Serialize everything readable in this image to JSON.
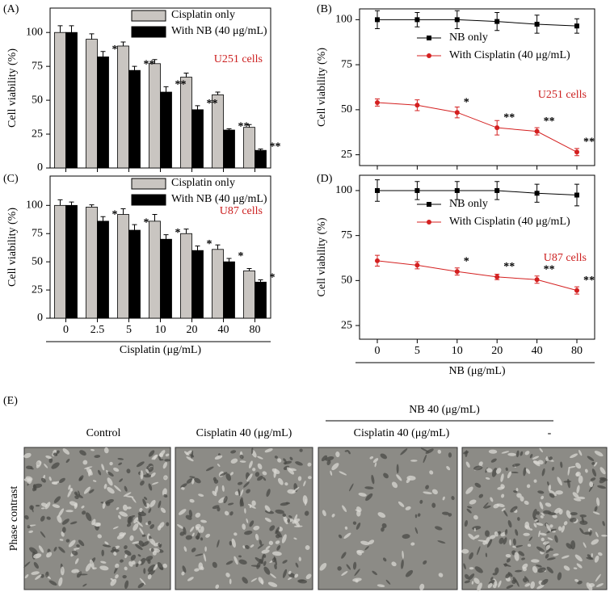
{
  "chart_data": [
    {
      "type": "bar",
      "panel": "(A)",
      "y_label": "Cell viability (%)",
      "annotation": "U251 cells",
      "annotation_color": "#cc1f1f",
      "categories": [
        null,
        null,
        null,
        null,
        null,
        null,
        null
      ],
      "series": [
        {
          "name": "Cisplatin only",
          "color": "#c9c5c1",
          "values": [
            100,
            95,
            90,
            77,
            67,
            54,
            30
          ],
          "errors": [
            5,
            4,
            3,
            3,
            3,
            2,
            2
          ]
        },
        {
          "name": "With NB (40 μg/mL)",
          "color": "#000000",
          "values": [
            100,
            82,
            72,
            56,
            43,
            28,
            13
          ],
          "errors": [
            5,
            4,
            3,
            4,
            3,
            1,
            1
          ],
          "significance": [
            null,
            "*",
            "**",
            "**",
            "**",
            "**",
            "**"
          ]
        }
      ],
      "ylim": [
        0,
        118
      ],
      "yticks": [
        0,
        25,
        50,
        75,
        100
      ],
      "legend": "upper right"
    },
    {
      "type": "line",
      "panel": "(B)",
      "y_label": "Cell viability (%)",
      "annotation": "U251 cells",
      "annotation_color": "#cc1f1f",
      "categories": [
        null,
        null,
        null,
        null,
        null,
        null
      ],
      "series": [
        {
          "name": "NB only",
          "color": "#000000",
          "marker": "square",
          "values": [
            100,
            100,
            100,
            99,
            97.5,
            96.5
          ],
          "errors": [
            5,
            4,
            5,
            5,
            5,
            4
          ]
        },
        {
          "name": "With Cisplatin (40 μg/mL)",
          "color": "#d42020",
          "marker": "circle",
          "values": [
            54,
            52.5,
            48.5,
            40,
            38,
            26.5
          ],
          "errors": [
            2,
            3,
            3,
            4,
            2,
            2
          ],
          "significance": [
            null,
            null,
            "*",
            "**",
            "**",
            "**"
          ]
        }
      ],
      "ylim": [
        19,
        106
      ],
      "yticks": [
        25,
        50,
        75,
        100
      ],
      "legend": "upper right"
    },
    {
      "type": "bar",
      "panel": "(C)",
      "y_label": "Cell viability (%)",
      "x_label": "Cisplatin (μg/mL)",
      "annotation": "U87 cells",
      "annotation_color": "#cc1f1f",
      "categories": [
        "0",
        "2.5",
        "5",
        "10",
        "20",
        "40",
        "80"
      ],
      "series": [
        {
          "name": "Cisplatin only",
          "color": "#c9c5c1",
          "values": [
            100,
            98.5,
            92,
            86,
            75,
            61,
            42
          ],
          "errors": [
            5,
            2,
            5,
            6,
            4,
            4,
            2
          ]
        },
        {
          "name": "With NB (40 μg/mL)",
          "color": "#000000",
          "values": [
            100,
            86,
            78,
            70,
            60,
            50,
            32
          ],
          "errors": [
            3,
            4,
            5,
            4,
            4,
            3,
            2
          ],
          "significance": [
            null,
            "*",
            "*",
            "*",
            "*",
            "*",
            "*"
          ]
        }
      ],
      "ylim": [
        0,
        126
      ],
      "yticks": [
        0,
        25,
        50,
        75,
        100
      ],
      "legend": "upper right"
    },
    {
      "type": "line",
      "panel": "(D)",
      "y_label": "Cell viability (%)",
      "x_label": "NB (μg/mL)",
      "annotation": "U87 cells",
      "annotation_color": "#cc1f1f",
      "categories": [
        "0",
        "5",
        "10",
        "20",
        "40",
        "80"
      ],
      "series": [
        {
          "name": "NB only",
          "color": "#000000",
          "marker": "square",
          "values": [
            100,
            100,
            100,
            100,
            98.5,
            97.5
          ],
          "errors": [
            6,
            5,
            5,
            5,
            5,
            6
          ]
        },
        {
          "name": "With Cisplatin (40 μg/mL)",
          "color": "#d42020",
          "marker": "circle",
          "values": [
            61,
            58.5,
            55,
            52,
            50.5,
            44.5
          ],
          "errors": [
            3,
            2,
            2,
            1.5,
            2,
            2
          ],
          "significance": [
            null,
            null,
            "*",
            "**",
            "**",
            "**"
          ]
        }
      ],
      "ylim": [
        17.4,
        108.5
      ],
      "yticks": [
        25,
        50,
        75,
        100
      ],
      "legend": "upper right"
    }
  ],
  "figure_e": {
    "panel": "(E)",
    "group_label": "NB 40 (μg/mL)",
    "columns": [
      "Control",
      "Cisplatin 40 (μg/mL)",
      "Cisplatin 40 (μg/mL)",
      "-"
    ],
    "row_label": "Phase contrast"
  }
}
